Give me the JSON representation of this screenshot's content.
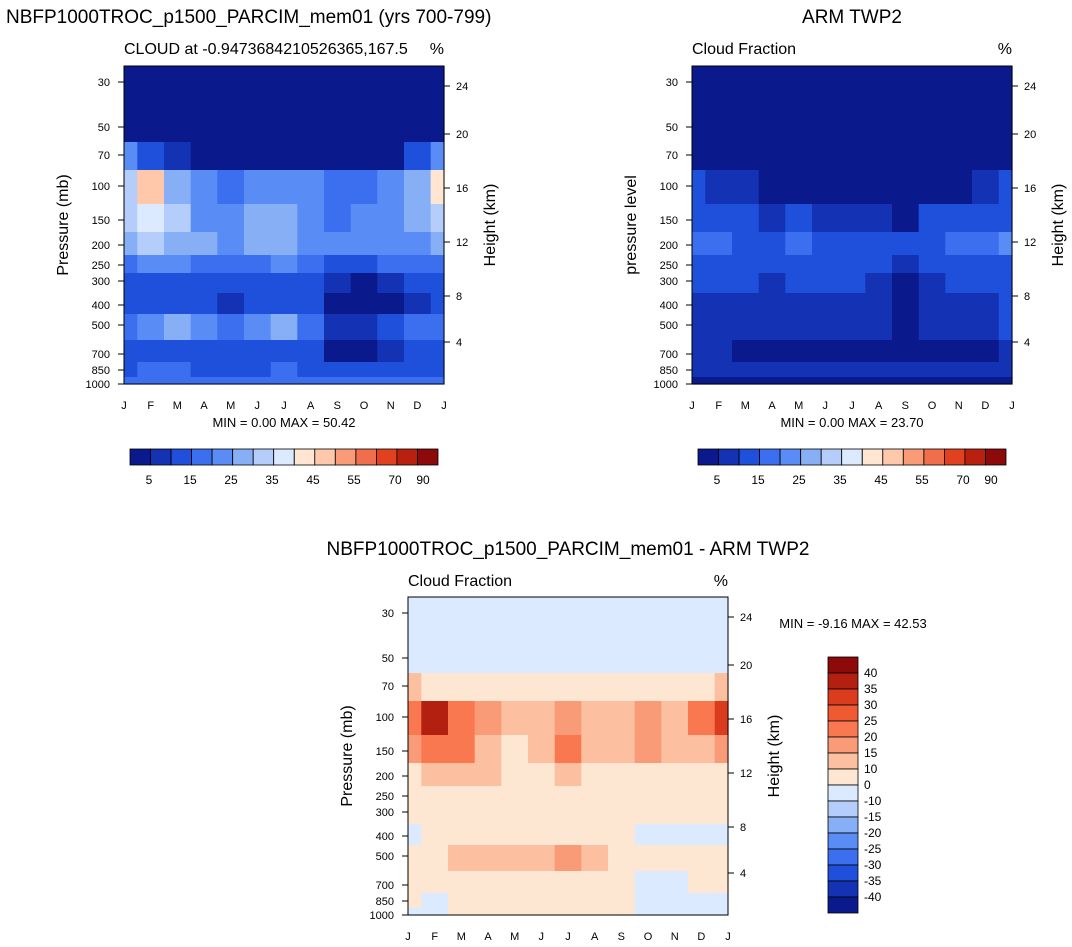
{
  "chart_data": [
    {
      "type": "heatmap",
      "title": "NBFP1000TROC_p1500_PARCIM_mem01 (yrs 700-799)",
      "subtitle_left": "CLOUD at -0.9473684210526365,167.5",
      "subtitle_right": "%",
      "ylabel": "Pressure (mb)",
      "ylabel_right": "Height (km)",
      "minmax": "MIN =   0.00 MAX =  50.42",
      "months": [
        "J",
        "F",
        "M",
        "A",
        "M",
        "J",
        "J",
        "A",
        "S",
        "O",
        "N",
        "D",
        "J"
      ],
      "pressure_ticks": [
        "30",
        "50",
        "70",
        "100",
        "150",
        "200",
        "250",
        "300",
        "400",
        "500",
        "700",
        "850",
        "1000"
      ],
      "height_ticks": [
        "24",
        "20",
        "16",
        "12",
        "8",
        "4"
      ],
      "colorbar_labels": [
        "5",
        "15",
        "25",
        "35",
        "45",
        "55",
        "70",
        "90"
      ],
      "colorbar_colors": [
        "#0a1a8c",
        "#1432b4",
        "#1e50dc",
        "#3c6ef0",
        "#5a8cf5",
        "#87aff5",
        "#b4cdfa",
        "#dceaff",
        "#ffe6d2",
        "#ffc8aa",
        "#fa9b78",
        "#f06e4b",
        "#e1411e",
        "#b9200f",
        "#8c0a0a"
      ],
      "grid": [
        [
          4,
          4,
          4,
          4,
          4,
          4,
          4,
          4,
          4,
          4,
          4,
          4,
          4
        ],
        [
          4,
          4,
          4,
          4,
          4,
          4,
          4,
          4,
          4,
          4,
          4,
          4,
          4
        ],
        [
          20,
          12,
          8,
          4,
          4,
          4,
          4,
          4,
          4,
          4,
          4,
          12,
          20
        ],
        [
          30,
          45,
          26,
          22,
          18,
          20,
          22,
          20,
          18,
          16,
          20,
          28,
          40
        ],
        [
          32,
          38,
          32,
          20,
          20,
          25,
          28,
          20,
          18,
          22,
          20,
          25,
          30
        ],
        [
          25,
          30,
          28,
          26,
          22,
          25,
          26,
          22,
          24,
          20,
          22,
          24,
          26
        ],
        [
          16,
          20,
          22,
          18,
          16,
          18,
          20,
          16,
          14,
          14,
          16,
          18,
          16
        ],
        [
          12,
          14,
          12,
          10,
          10,
          12,
          14,
          10,
          8,
          4,
          6,
          10,
          12
        ],
        [
          10,
          12,
          14,
          10,
          8,
          10,
          12,
          10,
          4,
          2,
          4,
          8,
          10
        ],
        [
          18,
          24,
          28,
          20,
          16,
          22,
          26,
          18,
          8,
          6,
          10,
          16,
          18
        ],
        [
          12,
          14,
          14,
          12,
          10,
          12,
          14,
          10,
          4,
          2,
          8,
          12,
          12
        ],
        [
          14,
          16,
          16,
          14,
          14,
          14,
          16,
          14,
          12,
          12,
          14,
          14,
          14
        ],
        [
          18,
          18,
          18,
          18,
          18,
          18,
          18,
          18,
          18,
          18,
          18,
          18,
          18
        ]
      ]
    },
    {
      "type": "heatmap",
      "title": "ARM TWP2",
      "subtitle_left": "Cloud Fraction",
      "subtitle_right": "%",
      "ylabel": "pressure level",
      "ylabel_right": "Height (km)",
      "minmax": "MIN =   0.00 MAX =  23.70",
      "months": [
        "J",
        "F",
        "M",
        "A",
        "M",
        "J",
        "J",
        "A",
        "S",
        "O",
        "N",
        "D",
        "J"
      ],
      "pressure_ticks": [
        "30",
        "50",
        "70",
        "100",
        "150",
        "200",
        "250",
        "300",
        "400",
        "500",
        "700",
        "850",
        "1000"
      ],
      "height_ticks": [
        "24",
        "20",
        "16",
        "12",
        "8",
        "4"
      ],
      "colorbar_labels": [
        "5",
        "15",
        "25",
        "35",
        "45",
        "55",
        "70",
        "90"
      ],
      "colorbar_colors": [
        "#0a1a8c",
        "#1432b4",
        "#1e50dc",
        "#3c6ef0",
        "#5a8cf5",
        "#87aff5",
        "#b4cdfa",
        "#dceaff",
        "#ffe6d2",
        "#ffc8aa",
        "#fa9b78",
        "#f06e4b",
        "#e1411e",
        "#b9200f",
        "#8c0a0a"
      ],
      "grid": [
        [
          2,
          2,
          2,
          2,
          2,
          2,
          2,
          2,
          2,
          2,
          2,
          2,
          2
        ],
        [
          2,
          2,
          2,
          2,
          2,
          2,
          2,
          2,
          2,
          2,
          2,
          2,
          2
        ],
        [
          4,
          2,
          2,
          2,
          2,
          2,
          2,
          2,
          2,
          2,
          2,
          2,
          4
        ],
        [
          10,
          8,
          6,
          4,
          2,
          2,
          4,
          4,
          2,
          4,
          4,
          6,
          10
        ],
        [
          14,
          12,
          10,
          8,
          12,
          8,
          8,
          6,
          4,
          10,
          12,
          12,
          14
        ],
        [
          18,
          16,
          14,
          12,
          16,
          12,
          14,
          12,
          10,
          14,
          16,
          18,
          20
        ],
        [
          14,
          14,
          12,
          10,
          12,
          12,
          12,
          10,
          8,
          10,
          14,
          14,
          14
        ],
        [
          10,
          10,
          10,
          8,
          10,
          10,
          10,
          8,
          4,
          8,
          10,
          10,
          10
        ],
        [
          8,
          8,
          8,
          6,
          8,
          8,
          8,
          6,
          4,
          6,
          8,
          8,
          10
        ],
        [
          8,
          8,
          6,
          6,
          6,
          8,
          6,
          6,
          4,
          6,
          6,
          6,
          12
        ],
        [
          6,
          6,
          4,
          4,
          2,
          4,
          2,
          4,
          2,
          2,
          4,
          4,
          6
        ],
        [
          8,
          8,
          6,
          6,
          6,
          6,
          6,
          6,
          6,
          6,
          6,
          6,
          8
        ],
        [
          4,
          4,
          4,
          4,
          4,
          4,
          4,
          4,
          4,
          4,
          4,
          4,
          4
        ]
      ]
    },
    {
      "type": "heatmap",
      "title": "NBFP1000TROC_p1500_PARCIM_mem01 - ARM TWP2",
      "subtitle_left": "Cloud Fraction",
      "subtitle_right": "%",
      "ylabel": "Pressure (mb)",
      "ylabel_right": "Height (km)",
      "minmax": "MIN =  -9.16 MAX =  42.53",
      "months": [
        "J",
        "F",
        "M",
        "A",
        "M",
        "J",
        "J",
        "A",
        "S",
        "O",
        "N",
        "D",
        "J"
      ],
      "pressure_ticks": [
        "30",
        "50",
        "70",
        "100",
        "150",
        "200",
        "250",
        "300",
        "400",
        "500",
        "700",
        "850",
        "1000"
      ],
      "height_ticks": [
        "24",
        "20",
        "16",
        "12",
        "8",
        "4"
      ],
      "colorbar_labels": [
        "40",
        "35",
        "30",
        "25",
        "20",
        "15",
        "10",
        "0",
        "-10",
        "-15",
        "-20",
        "-25",
        "-30",
        "-35",
        "-40"
      ],
      "colorbar_colors": [
        "#8c0a0a",
        "#b4200f",
        "#dc3c1e",
        "#f05a32",
        "#fa7850",
        "#fa9b78",
        "#fcc0a0",
        "#fde6d2",
        "#dceaff",
        "#b4cdfa",
        "#87aff5",
        "#5a8cf5",
        "#3c6ef0",
        "#1e50dc",
        "#1432b4",
        "#0a1a8c"
      ],
      "grid": [
        [
          -3,
          -3,
          -3,
          -3,
          -3,
          -3,
          -3,
          -3,
          -3,
          -3,
          -3,
          -3,
          -3
        ],
        [
          -3,
          -3,
          -3,
          -3,
          -3,
          -3,
          -3,
          -3,
          -3,
          -3,
          -3,
          -3,
          -3
        ],
        [
          12,
          8,
          5,
          3,
          3,
          3,
          3,
          3,
          3,
          3,
          4,
          7,
          14
        ],
        [
          22,
          38,
          24,
          16,
          12,
          14,
          18,
          14,
          12,
          16,
          14,
          24,
          32
        ],
        [
          16,
          22,
          20,
          10,
          8,
          12,
          20,
          10,
          10,
          16,
          12,
          14,
          16
        ],
        [
          7,
          12,
          12,
          10,
          6,
          8,
          10,
          6,
          6,
          8,
          6,
          8,
          6
        ],
        [
          2,
          6,
          8,
          4,
          2,
          4,
          6,
          4,
          2,
          2,
          2,
          2,
          2
        ],
        [
          2,
          2,
          2,
          2,
          2,
          2,
          2,
          2,
          2,
          1,
          2,
          2,
          2
        ],
        [
          -3,
          2,
          2,
          2,
          2,
          2,
          2,
          2,
          2,
          -3,
          -3,
          -3,
          -3
        ],
        [
          2,
          4,
          10,
          12,
          10,
          10,
          16,
          10,
          4,
          2,
          2,
          2,
          2
        ],
        [
          2,
          2,
          6,
          4,
          4,
          4,
          4,
          4,
          2,
          -3,
          -3,
          2,
          2
        ],
        [
          2,
          -3,
          2,
          2,
          2,
          2,
          2,
          2,
          2,
          -3,
          -3,
          -3,
          -3
        ],
        [
          -3,
          -3,
          2,
          2,
          2,
          2,
          2,
          2,
          2,
          -3,
          -3,
          -3,
          -3
        ]
      ]
    }
  ]
}
